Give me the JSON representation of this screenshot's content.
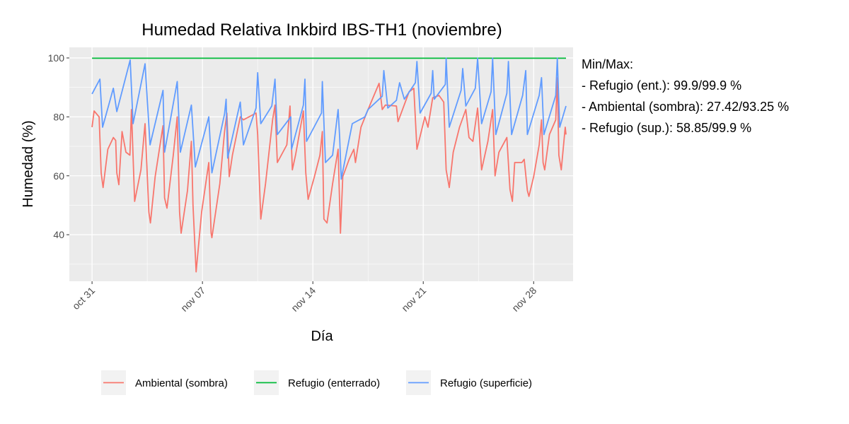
{
  "chart_data": {
    "type": "line",
    "title": "Humedad Relativa Inkbird IBS-TH1 (noviembre)",
    "xlabel": "Día",
    "ylabel": "Humedad (%)",
    "x_unit": "days since oct 31",
    "xlim": [
      -1.44,
      30.5
    ],
    "ylim": [
      24.2,
      103.6
    ],
    "grid": true,
    "x_ticks": [
      {
        "value": 0,
        "label": "oct 31"
      },
      {
        "value": 7,
        "label": "nov 07"
      },
      {
        "value": 14,
        "label": "nov 14"
      },
      {
        "value": 21,
        "label": "nov 21"
      },
      {
        "value": 28,
        "label": "nov 28"
      }
    ],
    "y_ticks": [
      {
        "value": 40,
        "label": "40"
      },
      {
        "value": 60,
        "label": "60"
      },
      {
        "value": 80,
        "label": "80"
      },
      {
        "value": 100,
        "label": "100"
      }
    ],
    "legend_position": "bottom",
    "series": [
      {
        "name": "Ambiental (sombra)",
        "color": "#F8766D",
        "points": [
          [
            0,
            76.5
          ],
          [
            0.13,
            82
          ],
          [
            0.45,
            80
          ],
          [
            0.58,
            61
          ],
          [
            0.7,
            56
          ],
          [
            1.0,
            69
          ],
          [
            1.35,
            73
          ],
          [
            1.5,
            72
          ],
          [
            1.57,
            61
          ],
          [
            1.7,
            57
          ],
          [
            1.9,
            75
          ],
          [
            2.15,
            68
          ],
          [
            2.4,
            67
          ],
          [
            2.5,
            82.5
          ],
          [
            2.7,
            51.3
          ],
          [
            3.1,
            62
          ],
          [
            3.36,
            77.7
          ],
          [
            3.6,
            47.7
          ],
          [
            3.7,
            44
          ],
          [
            4.0,
            59.7
          ],
          [
            4.5,
            77
          ],
          [
            4.6,
            52.5
          ],
          [
            4.75,
            49
          ],
          [
            5.15,
            67
          ],
          [
            5.4,
            80
          ],
          [
            5.55,
            47.7
          ],
          [
            5.65,
            40.5
          ],
          [
            6.05,
            55
          ],
          [
            6.3,
            71.7
          ],
          [
            6.4,
            50
          ],
          [
            6.6,
            27.4
          ],
          [
            6.95,
            47.7
          ],
          [
            7.4,
            64.5
          ],
          [
            7.55,
            40.5
          ],
          [
            7.6,
            39
          ],
          [
            8.1,
            57.3
          ],
          [
            8.4,
            75
          ],
          [
            8.55,
            81.3
          ],
          [
            8.7,
            59.7
          ],
          [
            8.9,
            67
          ],
          [
            9.4,
            80
          ],
          [
            9.6,
            79
          ],
          [
            10.4,
            81.3
          ],
          [
            10.5,
            74
          ],
          [
            10.7,
            45.3
          ],
          [
            11.0,
            57.3
          ],
          [
            11.45,
            79
          ],
          [
            11.6,
            84
          ],
          [
            11.75,
            64.5
          ],
          [
            12.35,
            70.5
          ],
          [
            12.55,
            83.7
          ],
          [
            12.7,
            62
          ],
          [
            12.9,
            67
          ],
          [
            13.4,
            82
          ],
          [
            13.55,
            61
          ],
          [
            13.7,
            52
          ],
          [
            14.1,
            59.7
          ],
          [
            14.45,
            67
          ],
          [
            14.6,
            75
          ],
          [
            14.7,
            45.3
          ],
          [
            14.9,
            44
          ],
          [
            15.25,
            57.3
          ],
          [
            15.6,
            69
          ],
          [
            15.75,
            40.5
          ],
          [
            15.9,
            59.7
          ],
          [
            16.3,
            65.6
          ],
          [
            16.6,
            69
          ],
          [
            16.7,
            64.5
          ],
          [
            17.05,
            76.5
          ],
          [
            17.5,
            82.5
          ],
          [
            18.2,
            91.4
          ],
          [
            18.4,
            82.5
          ],
          [
            18.6,
            84
          ],
          [
            19.3,
            83.7
          ],
          [
            19.4,
            78.4
          ],
          [
            20.1,
            88.5
          ],
          [
            20.4,
            89.7
          ],
          [
            20.6,
            69
          ],
          [
            21.1,
            80
          ],
          [
            21.3,
            76.5
          ],
          [
            21.6,
            86.5
          ],
          [
            22.0,
            87.3
          ],
          [
            22.3,
            85
          ],
          [
            22.45,
            62
          ],
          [
            22.65,
            56
          ],
          [
            22.9,
            68
          ],
          [
            23.3,
            76.5
          ],
          [
            23.7,
            82.5
          ],
          [
            23.9,
            73
          ],
          [
            24.15,
            71.7
          ],
          [
            24.45,
            83
          ],
          [
            24.7,
            62
          ],
          [
            25.1,
            71.7
          ],
          [
            25.4,
            82.5
          ],
          [
            25.55,
            60
          ],
          [
            25.8,
            68
          ],
          [
            26.3,
            73
          ],
          [
            26.5,
            55.4
          ],
          [
            26.65,
            51.3
          ],
          [
            26.8,
            64.5
          ],
          [
            27.25,
            64.5
          ],
          [
            27.4,
            65.6
          ],
          [
            27.6,
            55
          ],
          [
            27.7,
            53
          ],
          [
            28.0,
            59.7
          ],
          [
            28.35,
            70.5
          ],
          [
            28.5,
            79
          ],
          [
            28.6,
            64.5
          ],
          [
            28.7,
            62
          ],
          [
            29.0,
            74
          ],
          [
            29.4,
            79
          ],
          [
            29.5,
            93.25
          ],
          [
            29.6,
            67
          ],
          [
            29.75,
            62
          ],
          [
            30.0,
            76.5
          ],
          [
            30.05,
            74
          ]
        ]
      },
      {
        "name": "Refugio (enterrado)",
        "color": "#00BA38",
        "points": [
          [
            0,
            99.9
          ],
          [
            30.05,
            99.9
          ]
        ]
      },
      {
        "name": "Refugio (superficie)",
        "color": "#619CFF",
        "points": [
          [
            0,
            87.8
          ],
          [
            0.5,
            92.8
          ],
          [
            0.67,
            76.5
          ],
          [
            1.35,
            89.7
          ],
          [
            1.57,
            81.8
          ],
          [
            2.42,
            99.3
          ],
          [
            2.6,
            77.7
          ],
          [
            3.36,
            98
          ],
          [
            3.68,
            70.5
          ],
          [
            4.5,
            89
          ],
          [
            4.6,
            68
          ],
          [
            5.4,
            92
          ],
          [
            5.6,
            68
          ],
          [
            6.3,
            84
          ],
          [
            6.55,
            63
          ],
          [
            7.4,
            80
          ],
          [
            7.6,
            61
          ],
          [
            8.4,
            81
          ],
          [
            8.5,
            86
          ],
          [
            8.6,
            66
          ],
          [
            9.4,
            85
          ],
          [
            9.6,
            70.5
          ],
          [
            10.4,
            83
          ],
          [
            10.5,
            95
          ],
          [
            10.7,
            77.7
          ],
          [
            11.4,
            83.7
          ],
          [
            11.6,
            92.8
          ],
          [
            11.75,
            74
          ],
          [
            12.6,
            80
          ],
          [
            12.65,
            69
          ],
          [
            13.4,
            84
          ],
          [
            13.5,
            92.8
          ],
          [
            13.6,
            71.7
          ],
          [
            14.55,
            81.3
          ],
          [
            14.6,
            92
          ],
          [
            14.8,
            64.5
          ],
          [
            15.25,
            67
          ],
          [
            15.6,
            82.5
          ],
          [
            15.7,
            73
          ],
          [
            15.8,
            58.85
          ],
          [
            16.5,
            77.7
          ],
          [
            17.3,
            80
          ],
          [
            17.5,
            82.5
          ],
          [
            18.4,
            87
          ],
          [
            18.5,
            95.7
          ],
          [
            18.75,
            83
          ],
          [
            19.3,
            85.6
          ],
          [
            19.5,
            91.6
          ],
          [
            19.8,
            86
          ],
          [
            20.5,
            91.6
          ],
          [
            20.6,
            98.8
          ],
          [
            20.8,
            81.3
          ],
          [
            21.5,
            88
          ],
          [
            21.6,
            95.7
          ],
          [
            21.7,
            86
          ],
          [
            22.4,
            91
          ],
          [
            22.45,
            99.9
          ],
          [
            22.65,
            76.5
          ],
          [
            23.4,
            89
          ],
          [
            23.5,
            96.4
          ],
          [
            23.7,
            83.7
          ],
          [
            24.3,
            89.7
          ],
          [
            24.45,
            99.9
          ],
          [
            24.7,
            77.7
          ],
          [
            25.3,
            88.5
          ],
          [
            25.4,
            99.9
          ],
          [
            25.6,
            74
          ],
          [
            26.3,
            88
          ],
          [
            26.4,
            98.8
          ],
          [
            26.6,
            74
          ],
          [
            27.3,
            87.3
          ],
          [
            27.5,
            95.7
          ],
          [
            27.6,
            74
          ],
          [
            28.35,
            87.3
          ],
          [
            28.5,
            93.3
          ],
          [
            28.65,
            74
          ],
          [
            29.4,
            87.3
          ],
          [
            29.5,
            99.9
          ],
          [
            29.65,
            76.5
          ],
          [
            30.05,
            83.7
          ]
        ]
      }
    ],
    "annotations": [
      "Min/Max:",
      "- Refugio (ent.): 99.9/99.9 %",
      "- Ambiental (sombra): 27.42/93.25 %",
      "- Refugio (sup.): 58.85/99.9 %"
    ]
  }
}
